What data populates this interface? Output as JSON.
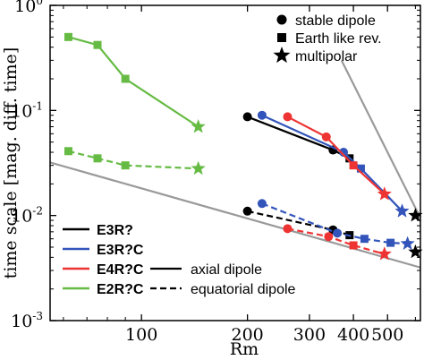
{
  "chart_data": {
    "type": "line",
    "xscale": "log",
    "yscale": "log",
    "xlim": [
      55,
      620
    ],
    "ylim": [
      0.001,
      1
    ],
    "xlabel": "Rm",
    "ylabel": "time scale [mag. diff. time]",
    "xticks": [
      {
        "value": 100,
        "label": "100"
      },
      {
        "value": 200,
        "label": "200"
      },
      {
        "value": 300,
        "label": "300"
      },
      {
        "value": 400,
        "label": "400"
      },
      {
        "value": 500,
        "label": "500"
      }
    ],
    "yticks": [
      {
        "value": 1,
        "base": "10",
        "exp": "0"
      },
      {
        "value": 0.1,
        "base": "10",
        "exp": "-1"
      },
      {
        "value": 0.01,
        "base": "10",
        "exp": "-2"
      },
      {
        "value": 0.001,
        "base": "10",
        "exp": "-3"
      }
    ],
    "reference_lines": [
      {
        "name": "steep-fit-line",
        "color": "#999999",
        "points": [
          [
            370,
            0.3
          ],
          [
            620,
            0.0095
          ]
        ]
      },
      {
        "name": "shallow-fit-line",
        "color": "#999999",
        "points": [
          [
            55,
            0.032
          ],
          [
            620,
            0.0032
          ]
        ]
      }
    ],
    "series": [
      {
        "name": "E3R?",
        "color": "#000000",
        "style": "solid",
        "x": [
          200,
          350,
          390
        ],
        "y": [
          0.087,
          0.042,
          0.035
        ],
        "markers": [
          "circle",
          "circle",
          "square"
        ]
      },
      {
        "name": "E3R?",
        "color": "#000000",
        "style": "dashed",
        "x": [
          200,
          350,
          390
        ],
        "y": [
          0.011,
          0.0073,
          0.0065
        ],
        "markers": [
          "circle",
          "circle",
          "square"
        ]
      },
      {
        "name": "E3R?C",
        "color": "#3355bb",
        "style": "solid",
        "x": [
          220,
          375,
          420,
          550
        ],
        "y": [
          0.09,
          0.04,
          0.028,
          0.011
        ],
        "markers": [
          "circle",
          "circle",
          "square",
          "star"
        ]
      },
      {
        "name": "E3R?C",
        "color": "#3355bb",
        "style": "dashed",
        "x": [
          220,
          360,
          430,
          510,
          570
        ],
        "y": [
          0.013,
          0.0068,
          0.006,
          0.0055,
          0.0054
        ],
        "markers": [
          "circle",
          "circle",
          "square",
          "square",
          "star"
        ]
      },
      {
        "name": "E4R?C",
        "color": "#ee3333",
        "style": "solid",
        "x": [
          260,
          335,
          400,
          490
        ],
        "y": [
          0.087,
          0.056,
          0.03,
          0.016
        ],
        "markers": [
          "circle",
          "circle",
          "square",
          "star"
        ]
      },
      {
        "name": "E4R?C",
        "color": "#ee3333",
        "style": "dashed",
        "x": [
          260,
          340,
          400,
          490
        ],
        "y": [
          0.0075,
          0.0063,
          0.0052,
          0.0043
        ],
        "markers": [
          "circle",
          "circle",
          "square",
          "star"
        ]
      },
      {
        "name": "E2R?C",
        "color": "#66bb44",
        "style": "solid",
        "x": [
          62,
          75,
          90,
          145
        ],
        "y": [
          0.5,
          0.42,
          0.2,
          0.07
        ],
        "markers": [
          "square",
          "square",
          "square",
          "star"
        ]
      },
      {
        "name": "E2R?C",
        "color": "#66bb44",
        "style": "dashed",
        "x": [
          62,
          75,
          90,
          145
        ],
        "y": [
          0.041,
          0.035,
          0.03,
          0.028
        ],
        "markers": [
          "square",
          "square",
          "square",
          "star"
        ]
      },
      {
        "name": "",
        "color": "#000000",
        "style": "solid",
        "x": [
          600
        ],
        "y": [
          0.01
        ],
        "markers": [
          "star"
        ]
      },
      {
        "name": "",
        "color": "#000000",
        "style": "solid",
        "x": [
          600
        ],
        "y": [
          0.0045
        ],
        "markers": [
          "star"
        ]
      }
    ],
    "marker_legend": [
      {
        "marker": "circle",
        "label": "stable dipole"
      },
      {
        "marker": "square",
        "label": "Earth like rev."
      },
      {
        "marker": "star",
        "label": "multipolar"
      }
    ],
    "color_legend": [
      {
        "label": "E3R?",
        "color": "#000000"
      },
      {
        "label": "E3R?C",
        "color": "#3355bb"
      },
      {
        "label": "E4R?C",
        "color": "#ee3333"
      },
      {
        "label": "E2R?C",
        "color": "#66bb44"
      }
    ],
    "style_legend": [
      {
        "style": "solid",
        "label": "axial dipole"
      },
      {
        "style": "dashed",
        "label": "equatorial dipole"
      }
    ],
    "grid": false
  }
}
